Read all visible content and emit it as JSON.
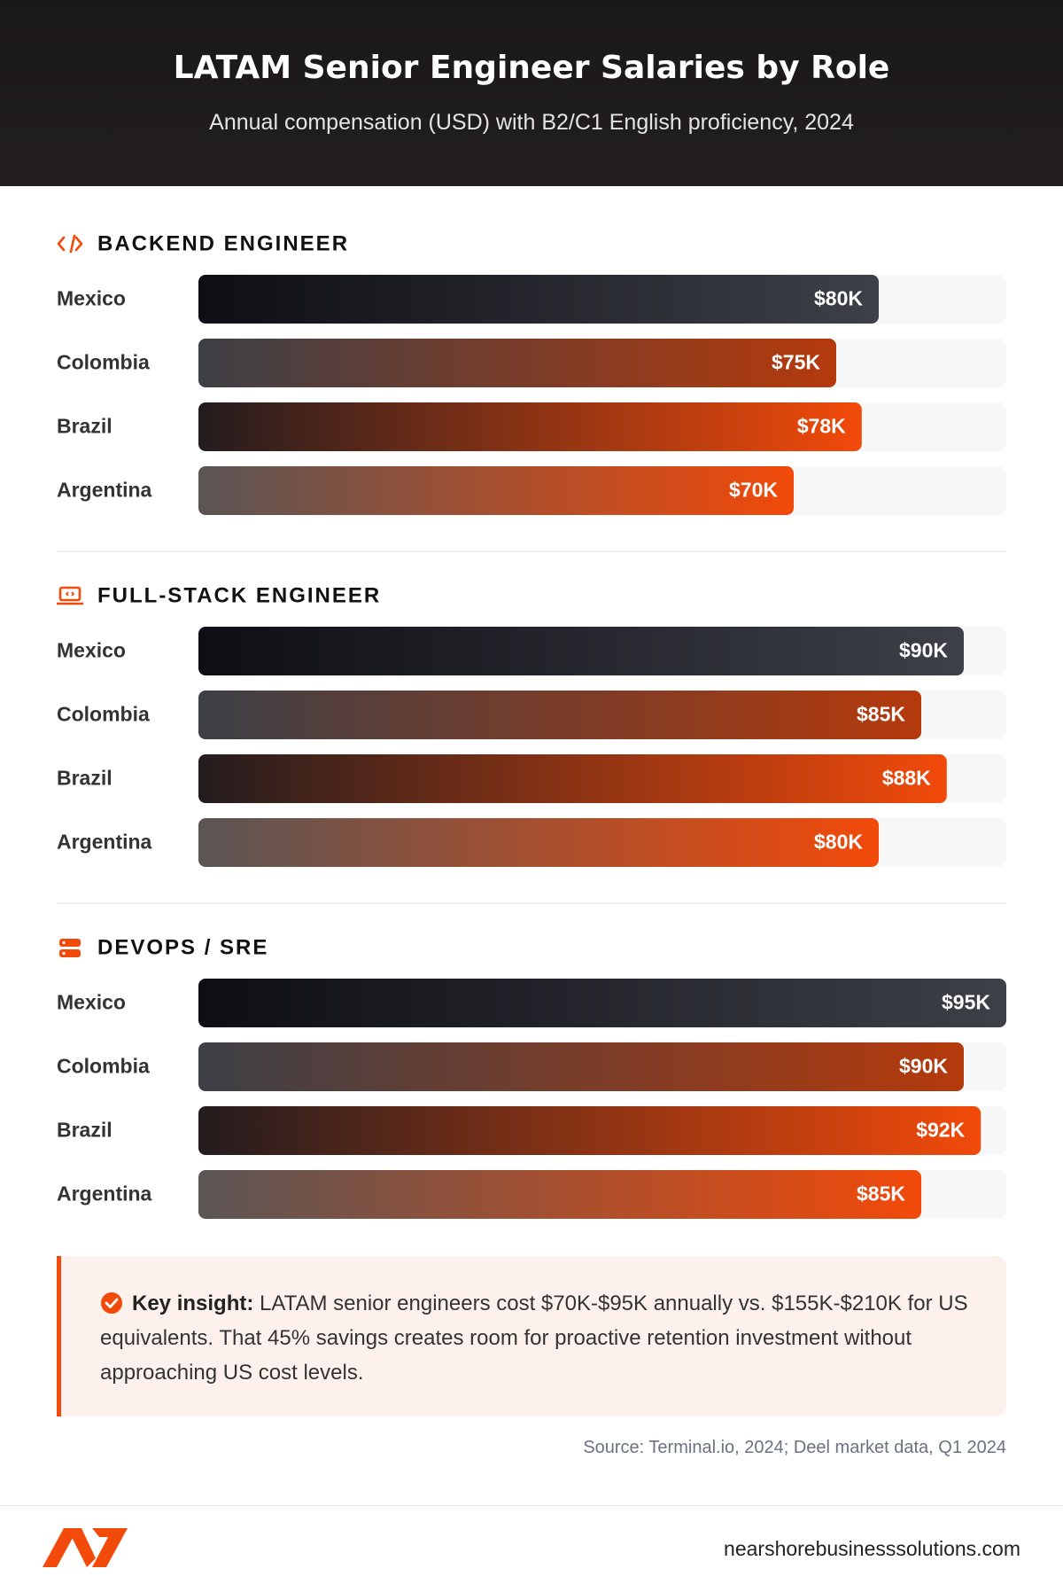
{
  "header": {
    "title": "LATAM Senior Engineer Salaries by Role",
    "subtitle": "Annual compensation (USD) with B2/C1 English proficiency, 2024"
  },
  "chart_data": [
    {
      "type": "bar",
      "orientation": "horizontal",
      "title": "BACKEND ENGINEER",
      "categories": [
        "Mexico",
        "Colombia",
        "Brazil",
        "Argentina"
      ],
      "values": [
        80,
        75,
        78,
        70
      ],
      "value_labels": [
        "$80K",
        "$75K",
        "$78K",
        "$70K"
      ],
      "xlim": [
        0,
        95
      ],
      "colors": [
        [
          "#0e0e14",
          "#3d4047"
        ],
        [
          "#3d4047",
          "#b53a0c"
        ],
        [
          "#231c1e",
          "#f24a0a"
        ],
        [
          "#5a5555",
          "#f24a0a"
        ]
      ]
    },
    {
      "type": "bar",
      "orientation": "horizontal",
      "title": "FULL-STACK ENGINEER",
      "categories": [
        "Mexico",
        "Colombia",
        "Brazil",
        "Argentina"
      ],
      "values": [
        90,
        85,
        88,
        80
      ],
      "value_labels": [
        "$90K",
        "$85K",
        "$88K",
        "$80K"
      ],
      "xlim": [
        0,
        95
      ],
      "colors": [
        [
          "#0e0e14",
          "#3d4047"
        ],
        [
          "#3d4047",
          "#b53a0c"
        ],
        [
          "#231c1e",
          "#f24a0a"
        ],
        [
          "#5a5555",
          "#f24a0a"
        ]
      ]
    },
    {
      "type": "bar",
      "orientation": "horizontal",
      "title": "DEVOPS / SRE",
      "categories": [
        "Mexico",
        "Colombia",
        "Brazil",
        "Argentina"
      ],
      "values": [
        95,
        90,
        92,
        85
      ],
      "value_labels": [
        "$95K",
        "$90K",
        "$92K",
        "$85K"
      ],
      "xlim": [
        0,
        95
      ],
      "colors": [
        [
          "#0e0e14",
          "#3d4047"
        ],
        [
          "#3d4047",
          "#b53a0c"
        ],
        [
          "#231c1e",
          "#f24a0a"
        ],
        [
          "#5a5555",
          "#f24a0a"
        ]
      ]
    }
  ],
  "insight": {
    "label": "Key insight:",
    "text": "LATAM senior engineers cost $70K-$95K annually vs. $155K-$210K for US equivalents. That 45% savings creates room for proactive retention investment without approaching US cost levels."
  },
  "source": "Source: Terminal.io, 2024; Deel market data, Q1 2024",
  "footer": {
    "url": "nearshorebusinesssolutions.com"
  }
}
